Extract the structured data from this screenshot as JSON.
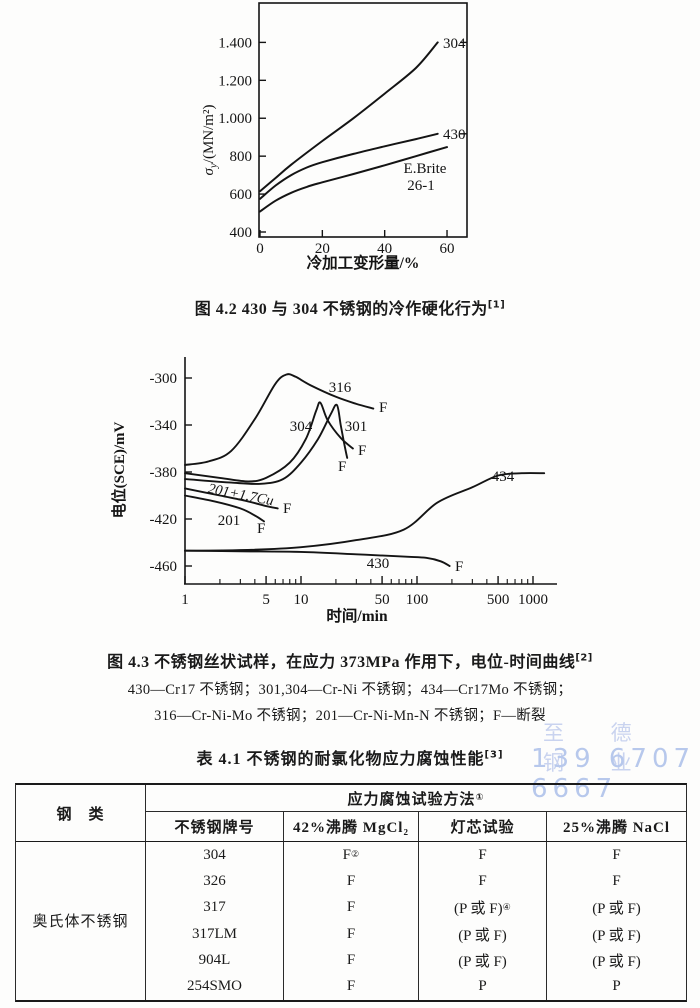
{
  "watermark": {
    "line1": "至 德 钢 业",
    "line2": "139 6707 6667",
    "color_line1": "#c9d3ef",
    "color_line2": "#b7c8ec"
  },
  "fig42": {
    "caption": "图 4.2  430 与 304 不锈钢的冷作硬化行为",
    "caption_sup": "[1]",
    "ylabel_sigma": "σ",
    "ylabel_sub": "y",
    "ylabel_rest": "/(MN/m²)",
    "xlabel": "冷加工变形量/%",
    "label_ebrite_1": "E.Brite",
    "label_ebrite_2": "26-1"
  },
  "fig43": {
    "caption": "图 4.3  不锈钢丝状试样，在应力 373MPa 作用下，电位-时间曲线",
    "caption_sup": "[2]",
    "legend_line1": "430—Cr17 不锈钢；301,304—Cr-Ni 不锈钢；434—Cr17Mo 不锈钢；",
    "legend_line2": "316—Cr-Ni-Mo 不锈钢；201—Cr-Ni-Mn-N 不锈钢；F—断裂",
    "ylabel": "电位(SCE)/mV",
    "xlabel": "时间/min",
    "fracture_marker": "F"
  },
  "table": {
    "title": "表 4.1  不锈钢的耐氯化物应力腐蚀性能",
    "title_sup": "[3]",
    "col_steel_class": "钢　类",
    "group_header": "应力腐蚀试验方法",
    "group_header_sup": "①",
    "columns": [
      "不锈钢牌号",
      "42%沸腾 MgCl₂",
      "灯芯试验",
      "25%沸腾 NaCl"
    ],
    "row_group_label": "奥氏体不锈钢",
    "rows": [
      {
        "grade": "304",
        "mgcl2": "F",
        "mgcl2_sup": "②",
        "wick": "F",
        "wick_sup": "",
        "nacl": "F"
      },
      {
        "grade": "326",
        "mgcl2": "F",
        "mgcl2_sup": "",
        "wick": "F",
        "wick_sup": "",
        "nacl": "F"
      },
      {
        "grade": "317",
        "mgcl2": "F",
        "mgcl2_sup": "",
        "wick": "(P 或 F)",
        "wick_sup": "④",
        "nacl": "(P 或 F)"
      },
      {
        "grade": "317LM",
        "mgcl2": "F",
        "mgcl2_sup": "",
        "wick": "(P 或 F)",
        "wick_sup": "",
        "nacl": "(P 或 F)"
      },
      {
        "grade": "904L",
        "mgcl2": "F",
        "mgcl2_sup": "",
        "wick": "(P 或 F)",
        "wick_sup": "",
        "nacl": "(P 或 F)"
      },
      {
        "grade": "254SMO",
        "mgcl2": "F",
        "mgcl2_sup": "",
        "wick": "P",
        "wick_sup": "",
        "nacl": "P"
      }
    ]
  },
  "chart_data": [
    {
      "type": "line",
      "title": "Cold-work hardening of 430 and 304 stainless steel",
      "xlabel": "冷加工变形量/%",
      "ylabel": "σy/(MN/m²)",
      "xlim": [
        0,
        66
      ],
      "ylim": [
        400,
        1450
      ],
      "grid": false,
      "xticks": [
        0,
        20,
        40,
        60
      ],
      "xtick_labels": [
        "0",
        "20",
        "40",
        "60"
      ],
      "yticks": [
        400,
        600,
        800,
        1000,
        1200,
        1400
      ],
      "ytick_labels": [
        "400",
        "600",
        "800",
        "1.000",
        "1.200",
        "1.400"
      ],
      "series": [
        {
          "name": "304",
          "x": [
            0,
            5,
            10,
            20,
            30,
            40,
            50,
            57
          ],
          "y": [
            615,
            685,
            755,
            880,
            1000,
            1130,
            1265,
            1400
          ]
        },
        {
          "name": "430",
          "x": [
            0,
            5,
            10,
            15,
            20,
            30,
            40,
            50,
            57
          ],
          "y": [
            575,
            645,
            700,
            740,
            768,
            812,
            852,
            890,
            918
          ]
        },
        {
          "name": "E.Brite 26-1",
          "x": [
            0,
            5,
            10,
            15,
            20,
            30,
            40,
            50,
            60
          ],
          "y": [
            508,
            565,
            607,
            638,
            662,
            706,
            752,
            800,
            848
          ]
        }
      ]
    },
    {
      "type": "line",
      "title": "Potential–time curves of stainless steel wire specimens under 373 MPa stress",
      "xlabel": "时间/min",
      "ylabel": "电位(SCE)/mV",
      "xscale": "log",
      "xlim": [
        1,
        1600
      ],
      "ylim": [
        -475,
        -293
      ],
      "grid": false,
      "xticks": [
        1,
        5,
        10,
        50,
        100,
        500,
        1000
      ],
      "xtick_labels": [
        "1",
        "5",
        "10",
        "50",
        "100",
        "500",
        "1000"
      ],
      "xminorticks": [
        2,
        3,
        4,
        6,
        7,
        8,
        9,
        20,
        30,
        40,
        60,
        70,
        80,
        90,
        200,
        300,
        400,
        600,
        700,
        800,
        900
      ],
      "yticks": [
        -300,
        -340,
        -380,
        -420,
        -460
      ],
      "ytick_labels": [
        "-300",
        "-340",
        "-380",
        "-420",
        "-460"
      ],
      "fracture_note": "F marks fracture (断裂) at curve end",
      "series": [
        {
          "name": "316",
          "fracture": true,
          "x": [
            1,
            1.6,
            2.5,
            4,
            6,
            7.5,
            9,
            12,
            20,
            30,
            42
          ],
          "y": [
            -374,
            -371,
            -362,
            -335,
            -305,
            -297,
            -299,
            -306,
            -316,
            -322,
            -326
          ]
        },
        {
          "name": "304",
          "fracture": true,
          "x": [
            1,
            2,
            3.5,
            5,
            8,
            11,
            13.5,
            14.7,
            17,
            22,
            28
          ],
          "y": [
            -381,
            -385,
            -388,
            -385,
            -372,
            -352,
            -328,
            -321,
            -336,
            -351,
            -360
          ]
        },
        {
          "name": "301",
          "fracture": true,
          "x": [
            1,
            2.5,
            4.5,
            7,
            10,
            14,
            18,
            20.4,
            22,
            23.5,
            25
          ],
          "y": [
            -386,
            -389,
            -390,
            -386,
            -372,
            -352,
            -331,
            -323,
            -340,
            -355,
            -368
          ]
        },
        {
          "name": "201+1.7Cu",
          "fracture": true,
          "x": [
            1,
            2,
            3.5,
            5,
            6.3
          ],
          "y": [
            -394,
            -400,
            -405,
            -409,
            -411
          ]
        },
        {
          "name": "201",
          "fracture": true,
          "x": [
            1,
            1.8,
            3,
            4,
            4.8
          ],
          "y": [
            -400,
            -405,
            -411,
            -417,
            -422
          ]
        },
        {
          "name": "434",
          "fracture": false,
          "x": [
            1,
            3,
            10,
            30,
            77,
            150,
            300,
            500,
            800,
            1250
          ],
          "y": [
            -447,
            -446.5,
            -444,
            -438,
            -429,
            -406,
            -393,
            -383,
            -381,
            -381
          ]
        },
        {
          "name": "430",
          "fracture": true,
          "x": [
            1,
            3,
            10,
            30,
            77,
            120,
            160,
            191
          ],
          "y": [
            -447,
            -447.5,
            -448,
            -450,
            -452,
            -453,
            -456,
            -460
          ]
        }
      ]
    }
  ]
}
